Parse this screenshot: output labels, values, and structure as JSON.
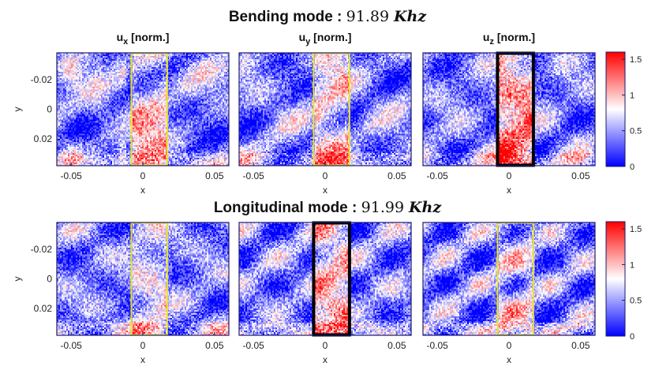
{
  "chart_data": {
    "type": "heatmap",
    "rows": [
      {
        "title_prefix": "Bending mode : ",
        "title_value": "91.89",
        "title_unit": "Khz",
        "panels": [
          {
            "component_main": "u",
            "component_sub": "x",
            "title_suffix": " [norm.]",
            "box_color": "#e6e62a",
            "box_x_range": [
              -0.008,
              0.017
            ]
          },
          {
            "component_main": "u",
            "component_sub": "y",
            "title_suffix": " [norm.]",
            "box_color": "#e6e62a",
            "box_x_range": [
              -0.008,
              0.017
            ]
          },
          {
            "component_main": "u",
            "component_sub": "z",
            "title_suffix": " [norm.]",
            "box_color": "#000000",
            "box_x_range": [
              -0.008,
              0.017
            ]
          }
        ]
      },
      {
        "title_prefix": "Longitudinal mode : ",
        "title_value": "91.99",
        "title_unit": "Khz",
        "panels": [
          {
            "component_main": "",
            "component_sub": "",
            "title_suffix": "",
            "box_color": "#e6e62a",
            "box_x_range": [
              -0.008,
              0.017
            ]
          },
          {
            "component_main": "",
            "component_sub": "",
            "title_suffix": "",
            "box_color": "#000000",
            "box_x_range": [
              -0.008,
              0.017
            ]
          },
          {
            "component_main": "",
            "component_sub": "",
            "title_suffix": "",
            "box_color": "#e6e62a",
            "box_x_range": [
              -0.008,
              0.017
            ]
          }
        ]
      }
    ],
    "xlabel": "x",
    "ylabel": "y",
    "xlim": [
      -0.06,
      0.06
    ],
    "ylim": [
      -0.038,
      0.038
    ],
    "x_ticks": [
      "-0.05",
      "0",
      "0.05"
    ],
    "x_tick_values": [
      -0.05,
      0,
      0.05
    ],
    "y_ticks": [
      "-0.02",
      "0",
      "0.02"
    ],
    "y_tick_values": [
      -0.02,
      0,
      0.02
    ],
    "y_reversed": true,
    "colorbar": {
      "range": [
        0,
        1.6
      ],
      "ticks": [
        "1.5",
        "1",
        "0.5",
        "0"
      ],
      "tick_values": [
        1.5,
        1,
        0.5,
        0
      ],
      "colormap": [
        "#0000ff",
        "#ffffff",
        "#ff0000"
      ]
    },
    "grid": false
  }
}
